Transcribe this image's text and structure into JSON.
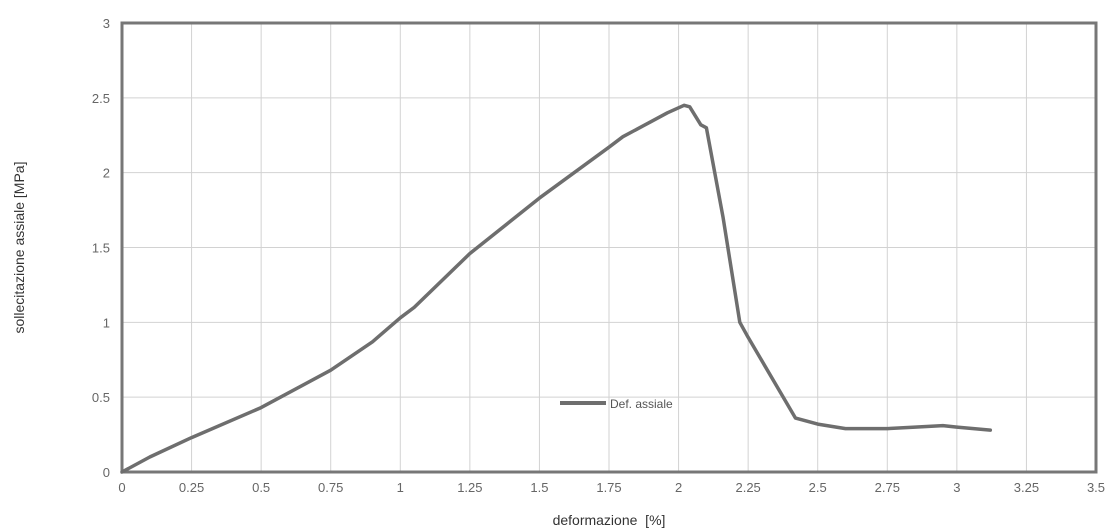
{
  "chart_data": {
    "type": "line",
    "title": "",
    "xlabel": "deformazione  [%]",
    "ylabel": "sollecitazione assiale [MPa]",
    "xlim": [
      0,
      3.5
    ],
    "ylim": [
      0,
      3
    ],
    "x_ticks": [
      "0",
      "0.25",
      "0.5",
      "0.75",
      "1",
      "1.25",
      "1.5",
      "1.75",
      "2",
      "2.25",
      "2.5",
      "2.75",
      "3",
      "3.25",
      "3.5"
    ],
    "y_ticks": [
      "0",
      "0.5",
      "1",
      "1.5",
      "2",
      "2.5",
      "3"
    ],
    "grid": true,
    "legend_position": "center-bottom",
    "series": [
      {
        "name": "Def. assiale",
        "color": "#6e6e6e",
        "x": [
          0,
          0.1,
          0.25,
          0.5,
          0.75,
          0.9,
          1.0,
          1.05,
          1.25,
          1.5,
          1.75,
          1.8,
          1.9,
          1.96,
          2.02,
          2.04,
          2.08,
          2.1,
          2.16,
          2.22,
          2.25,
          2.42,
          2.5,
          2.6,
          2.75,
          2.85,
          2.95,
          3.0,
          3.12
        ],
        "y": [
          0,
          0.1,
          0.23,
          0.43,
          0.68,
          0.87,
          1.03,
          1.1,
          1.46,
          1.83,
          2.17,
          2.24,
          2.34,
          2.4,
          2.45,
          2.44,
          2.32,
          2.3,
          1.7,
          1.0,
          0.9,
          0.36,
          0.32,
          0.29,
          0.29,
          0.3,
          0.31,
          0.3,
          0.28
        ]
      }
    ]
  }
}
